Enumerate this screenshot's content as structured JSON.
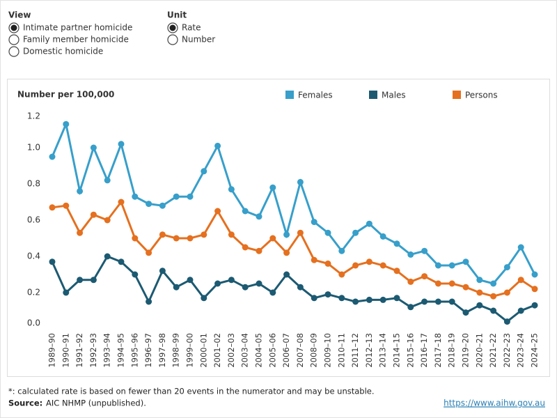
{
  "controls": [
    {
      "label": "View",
      "options": [
        "Intimate partner homicide",
        "Family member homicide",
        "Domestic homicide"
      ],
      "selected": 0
    },
    {
      "label": "Unit",
      "options": [
        "Rate",
        "Number"
      ],
      "selected": 0
    }
  ],
  "chart_data": {
    "type": "line",
    "y_label": "Number per 100,000",
    "categories": [
      "1989–90",
      "1990–91",
      "1991–92",
      "1992–93",
      "1993–94",
      "1994–95",
      "1995–96",
      "1996–97",
      "1997–98",
      "1998–99",
      "1999–00",
      "2000–01",
      "2001–02",
      "2002–03",
      "2003–04",
      "2004–05",
      "2005–06",
      "2006–07",
      "2007–08",
      "2008–09",
      "2009–10",
      "2010–11",
      "2011–12",
      "2012–13",
      "2013–14",
      "2014–15",
      "2015–16",
      "2016–17",
      "2017–18",
      "2018–19",
      "2019–20",
      "2020–21",
      "2021–22",
      "2022–23",
      "2023–24",
      "2024–25"
    ],
    "series": [
      {
        "name": "Females",
        "color": "#379fca",
        "values": [
          0.95,
          1.13,
          0.76,
          1.0,
          0.82,
          1.02,
          0.73,
          0.69,
          0.68,
          0.73,
          0.73,
          0.87,
          1.01,
          0.77,
          0.65,
          0.62,
          0.78,
          0.52,
          0.81,
          0.59,
          0.53,
          0.43,
          0.53,
          0.58,
          0.51,
          0.47,
          0.41,
          0.43,
          0.35,
          0.35,
          0.37,
          0.27,
          0.25,
          0.34,
          0.45,
          0.3
        ]
      },
      {
        "name": "Males",
        "color": "#1c5a72",
        "values": [
          0.37,
          0.2,
          0.27,
          0.27,
          0.4,
          0.37,
          0.3,
          0.15,
          0.32,
          0.23,
          0.27,
          0.17,
          0.25,
          0.27,
          0.23,
          0.25,
          0.2,
          0.3,
          0.23,
          0.17,
          0.19,
          0.17,
          0.15,
          0.16,
          0.16,
          0.17,
          0.12,
          0.15,
          0.15,
          0.15,
          0.09,
          0.13,
          0.1,
          0.04,
          0.1,
          0.13
        ]
      },
      {
        "name": "Persons",
        "color": "#e5701f",
        "values": [
          0.67,
          0.68,
          0.53,
          0.63,
          0.6,
          0.7,
          0.5,
          0.42,
          0.52,
          0.5,
          0.5,
          0.52,
          0.65,
          0.52,
          0.45,
          0.43,
          0.5,
          0.42,
          0.53,
          0.38,
          0.36,
          0.3,
          0.35,
          0.37,
          0.35,
          0.32,
          0.26,
          0.29,
          0.25,
          0.25,
          0.23,
          0.2,
          0.18,
          0.2,
          0.27,
          0.22
        ]
      }
    ],
    "ylim": [
      0,
      1.2
    ],
    "yticks": [
      {
        "value": 0,
        "label": "0.0"
      },
      0.2,
      0.4,
      0.6,
      0.8,
      {
        "value": 1,
        "label": "1.0"
      },
      1.2
    ],
    "grid": false
  },
  "footer": {
    "note": "*: calculated rate is based on fewer than 20 events in the numerator and may be unstable.",
    "source_label": "Source:",
    "source_text": "AIC NHMP (unpublished).",
    "url": "https://www.aihw.gov.au"
  }
}
